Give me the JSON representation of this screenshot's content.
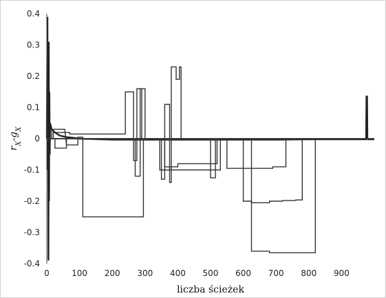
{
  "chart_data": {
    "type": "line",
    "title": "",
    "xlabel": "liczba ścieżek",
    "ylabel": "r_X-g_X",
    "xlim": [
      0,
      1000
    ],
    "ylim": [
      -0.4,
      0.4
    ],
    "x_ticks": [
      0,
      100,
      200,
      300,
      400,
      500,
      600,
      700,
      800,
      900
    ],
    "y_ticks": [
      0.4,
      0.3,
      0.2,
      0.1,
      0,
      -0.1,
      -0.2,
      -0.3,
      -0.4
    ],
    "grid": false,
    "legend": "none",
    "series": [
      {
        "x": [
          0,
          1,
          2,
          3,
          4,
          5,
          6,
          7,
          8,
          9,
          10,
          15,
          25,
          40,
          60,
          80,
          100,
          200,
          300,
          400,
          500,
          600,
          700,
          800,
          900,
          960,
          975,
          976,
          978,
          979,
          981,
          1000
        ],
        "y": [
          0,
          0.2,
          0.39,
          -0.1,
          0.23,
          -0.39,
          0.31,
          -0.2,
          0.15,
          -0.05,
          0.05,
          0.03,
          0.02,
          0.01,
          0.005,
          0.003,
          0.0,
          -0.003,
          -0.003,
          -0.003,
          -0.003,
          -0.003,
          -0.003,
          -0.002,
          -0.002,
          -0.002,
          -0.002,
          0.135,
          0.135,
          0.0,
          -0.002,
          -0.002
        ]
      },
      {
        "x": [
          0,
          15,
          15,
          55,
          60,
          95,
          95,
          110,
          110,
          295,
          295,
          310,
          1000
        ],
        "y": [
          0,
          0.0,
          0.03,
          0.03,
          -0.02,
          -0.02,
          0.005,
          0.005,
          -0.25,
          -0.25,
          0.0,
          0.0,
          0.0
        ]
      },
      {
        "x": [
          0,
          20,
          20,
          70,
          70,
          240,
          240,
          265,
          265,
          275,
          275,
          290,
          290,
          1000
        ],
        "y": [
          0,
          0.0,
          0.02,
          0.02,
          0.015,
          0.015,
          0.15,
          0.15,
          -0.07,
          -0.07,
          0.16,
          0.16,
          0.0,
          0.0
        ]
      },
      {
        "x": [
          0,
          25,
          25,
          60,
          60,
          270,
          270,
          285,
          285,
          300,
          300,
          1000
        ],
        "y": [
          0,
          0.0,
          -0.03,
          -0.03,
          0.0,
          0.0,
          -0.12,
          -0.12,
          0.16,
          0.16,
          0.0,
          0.0
        ]
      },
      {
        "x": [
          0,
          350,
          350,
          360,
          360,
          375,
          375,
          380,
          380,
          395,
          395,
          405,
          405,
          410,
          410,
          1000
        ],
        "y": [
          0,
          0.0,
          -0.13,
          -0.13,
          0.11,
          0.11,
          -0.14,
          -0.14,
          0.23,
          0.23,
          0.19,
          0.19,
          0.23,
          0.23,
          0.0,
          0.0
        ]
      },
      {
        "x": [
          0,
          360,
          360,
          400,
          400,
          520,
          520,
          1000
        ],
        "y": [
          0,
          0.0,
          -0.09,
          -0.09,
          -0.08,
          -0.08,
          0.0,
          0.0
        ]
      },
      {
        "x": [
          0,
          345,
          345,
          530,
          530,
          1000
        ],
        "y": [
          0,
          0.0,
          -0.1,
          -0.1,
          0.0,
          0.0
        ]
      },
      {
        "x": [
          0,
          500,
          500,
          515,
          515,
          1000
        ],
        "y": [
          0,
          0.0,
          -0.125,
          -0.125,
          0.0,
          0.0
        ]
      },
      {
        "x": [
          0,
          550,
          550,
          690,
          690,
          730,
          730,
          1000
        ],
        "y": [
          0,
          0.0,
          -0.095,
          -0.095,
          -0.09,
          -0.09,
          0.0,
          0.0
        ]
      },
      {
        "x": [
          0,
          600,
          600,
          625,
          625,
          680,
          680,
          720,
          720,
          760,
          760,
          780,
          780,
          1000
        ],
        "y": [
          0,
          0.0,
          -0.2,
          -0.2,
          -0.205,
          -0.205,
          -0.2,
          -0.2,
          -0.198,
          -0.198,
          -0.196,
          -0.196,
          0.0,
          0.0
        ]
      },
      {
        "x": [
          0,
          625,
          625,
          680,
          680,
          700,
          700,
          820,
          820,
          1000
        ],
        "y": [
          0,
          0.0,
          -0.36,
          -0.36,
          -0.365,
          -0.365,
          -0.365,
          -0.365,
          0.0,
          0.0
        ]
      }
    ]
  }
}
